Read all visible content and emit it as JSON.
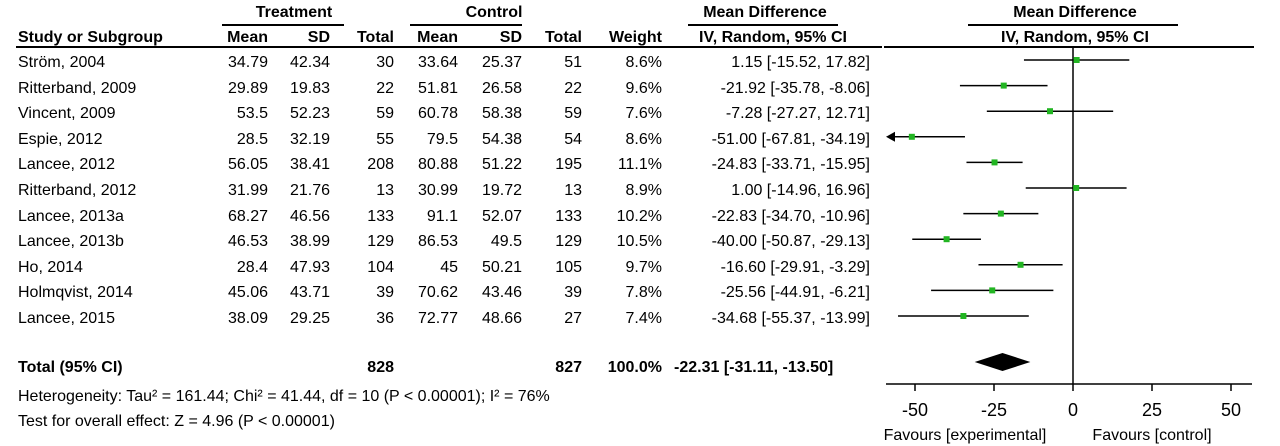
{
  "headers": {
    "treatment": "Treatment",
    "control": "Control",
    "mean_difference": "Mean Difference",
    "study_or_subgroup": "Study or Subgroup",
    "mean": "Mean",
    "sd": "SD",
    "total": "Total",
    "weight": "Weight",
    "method": "IV, Random, 95% CI",
    "plot_title": "Mean Difference",
    "plot_method": "IV, Random, 95% CI"
  },
  "studies": [
    {
      "name": "Ström, 2004",
      "t_mean": "34.79",
      "t_sd": "42.34",
      "t_total": "30",
      "c_mean": "33.64",
      "c_sd": "25.37",
      "c_total": "51",
      "weight": "8.6%",
      "ci_text": "1.15 [-15.52, 17.82]"
    },
    {
      "name": "Ritterband, 2009",
      "t_mean": "29.89",
      "t_sd": "19.83",
      "t_total": "22",
      "c_mean": "51.81",
      "c_sd": "26.58",
      "c_total": "22",
      "weight": "9.6%",
      "ci_text": "-21.92 [-35.78, -8.06]"
    },
    {
      "name": "Vincent, 2009",
      "t_mean": "53.5",
      "t_sd": "52.23",
      "t_total": "59",
      "c_mean": "60.78",
      "c_sd": "58.38",
      "c_total": "59",
      "weight": "7.6%",
      "ci_text": "-7.28 [-27.27, 12.71]"
    },
    {
      "name": "Espie, 2012",
      "t_mean": "28.5",
      "t_sd": "32.19",
      "t_total": "55",
      "c_mean": "79.5",
      "c_sd": "54.38",
      "c_total": "54",
      "weight": "8.6%",
      "ci_text": "-51.00 [-67.81, -34.19]"
    },
    {
      "name": "Lancee, 2012",
      "t_mean": "56.05",
      "t_sd": "38.41",
      "t_total": "208",
      "c_mean": "80.88",
      "c_sd": "51.22",
      "c_total": "195",
      "weight": "11.1%",
      "ci_text": "-24.83 [-33.71, -15.95]"
    },
    {
      "name": "Ritterband, 2012",
      "t_mean": "31.99",
      "t_sd": "21.76",
      "t_total": "13",
      "c_mean": "30.99",
      "c_sd": "19.72",
      "c_total": "13",
      "weight": "8.9%",
      "ci_text": "1.00 [-14.96, 16.96]"
    },
    {
      "name": "Lancee, 2013a",
      "t_mean": "68.27",
      "t_sd": "46.56",
      "t_total": "133",
      "c_mean": "91.1",
      "c_sd": "52.07",
      "c_total": "133",
      "weight": "10.2%",
      "ci_text": "-22.83 [-34.70, -10.96]"
    },
    {
      "name": "Lancee, 2013b",
      "t_mean": "46.53",
      "t_sd": "38.99",
      "t_total": "129",
      "c_mean": "86.53",
      "c_sd": "49.5",
      "c_total": "129",
      "weight": "10.5%",
      "ci_text": "-40.00 [-50.87, -29.13]"
    },
    {
      "name": "Ho, 2014",
      "t_mean": "28.4",
      "t_sd": "47.93",
      "t_total": "104",
      "c_mean": "45",
      "c_sd": "50.21",
      "c_total": "105",
      "weight": "9.7%",
      "ci_text": "-16.60 [-29.91, -3.29]"
    },
    {
      "name": "Holmqvist, 2014",
      "t_mean": "45.06",
      "t_sd": "43.71",
      "t_total": "39",
      "c_mean": "70.62",
      "c_sd": "43.46",
      "c_total": "39",
      "weight": "7.8%",
      "ci_text": "-25.56 [-44.91, -6.21]"
    },
    {
      "name": "Lancee, 2015",
      "t_mean": "38.09",
      "t_sd": "29.25",
      "t_total": "36",
      "c_mean": "72.77",
      "c_sd": "48.66",
      "c_total": "27",
      "weight": "7.4%",
      "ci_text": "-34.68 [-55.37, -13.99]"
    }
  ],
  "total": {
    "label": "Total (95% CI)",
    "t_total": "828",
    "c_total": "827",
    "weight": "100.0%",
    "ci_text": "-22.31 [-31.11, -13.50]"
  },
  "heterogeneity": "Heterogeneity: Tau² = 161.44; Chi² = 41.44, df = 10 (P < 0.00001); I² = 76%",
  "overall_effect": "Test for overall effect: Z = 4.96 (P < 0.00001)",
  "favours_left": "Favours [experimental]",
  "favours_right": "Favours [control]",
  "colors": {
    "marker": "#22b522",
    "line": "#000000"
  },
  "chart_data": {
    "type": "forest",
    "categories": [
      "Ström, 2004",
      "Ritterband, 2009",
      "Vincent, 2009",
      "Espie, 2012",
      "Lancee, 2012",
      "Ritterband, 2012",
      "Lancee, 2013a",
      "Lancee, 2013b",
      "Ho, 2014",
      "Holmqvist, 2014",
      "Lancee, 2015"
    ],
    "estimates": [
      1.15,
      -21.92,
      -7.28,
      -51.0,
      -24.83,
      1.0,
      -22.83,
      -40.0,
      -16.6,
      -25.56,
      -34.68
    ],
    "ci_low": [
      -15.52,
      -35.78,
      -27.27,
      -67.81,
      -33.71,
      -14.96,
      -34.7,
      -50.87,
      -29.91,
      -44.91,
      -55.37
    ],
    "ci_high": [
      17.82,
      -8.06,
      12.71,
      -34.19,
      -15.95,
      16.96,
      -10.96,
      -29.13,
      -3.29,
      -6.21,
      -13.99
    ],
    "pooled": {
      "estimate": -22.31,
      "low": -31.11,
      "high": -13.5
    },
    "xlim": [
      -60,
      60
    ],
    "ticks": [
      -50,
      -25,
      0,
      25,
      50
    ],
    "tick_labels": [
      "-50",
      "-25",
      "0",
      "25",
      "50"
    ],
    "xlabel_left": "Favours [experimental]",
    "xlabel_right": "Favours [control]"
  }
}
